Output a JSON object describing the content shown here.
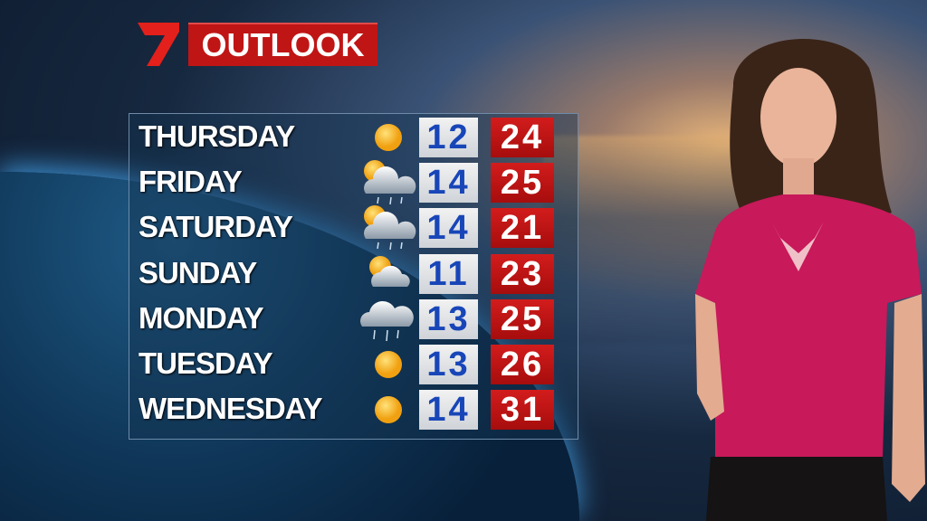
{
  "header": {
    "title": "OUTLOOK",
    "logo": "Seven network logo (7)"
  },
  "colors": {
    "max_bg": "#c01515",
    "min_bg": "#e8e8e8",
    "min_text": "#1846b8"
  },
  "forecast": [
    {
      "day": "THURSDAY",
      "icon": "sun-icon",
      "min": "12",
      "max": "24"
    },
    {
      "day": "FRIDAY",
      "icon": "sun-cloud-rain-icon",
      "min": "14",
      "max": "25"
    },
    {
      "day": "SATURDAY",
      "icon": "sun-cloud-rain-icon",
      "min": "14",
      "max": "21"
    },
    {
      "day": "SUNDAY",
      "icon": "sun-cloud-icon",
      "min": "11",
      "max": "23"
    },
    {
      "day": "MONDAY",
      "icon": "cloud-rain-icon",
      "min": "13",
      "max": "25"
    },
    {
      "day": "TUESDAY",
      "icon": "sun-icon",
      "min": "13",
      "max": "26"
    },
    {
      "day": "WEDNESDAY",
      "icon": "sun-icon",
      "min": "14",
      "max": "31"
    }
  ]
}
